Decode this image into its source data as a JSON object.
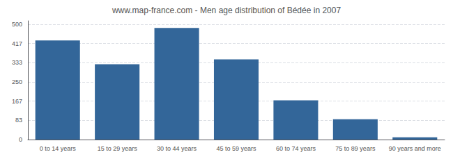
{
  "chart_data": {
    "type": "bar",
    "title": "www.map-france.com - Men age distribution of Bédée in 2007",
    "categories": [
      "0 to 14 years",
      "15 to 29 years",
      "30 to 44 years",
      "45 to 59 years",
      "60 to 74 years",
      "75 to 89 years",
      "90 years and more"
    ],
    "values": [
      430,
      327,
      484,
      348,
      170,
      88,
      10
    ],
    "color": "#336699",
    "ylim": [
      0,
      515
    ],
    "yticks": [
      0,
      83,
      167,
      250,
      333,
      417,
      500
    ],
    "grid": true
  }
}
